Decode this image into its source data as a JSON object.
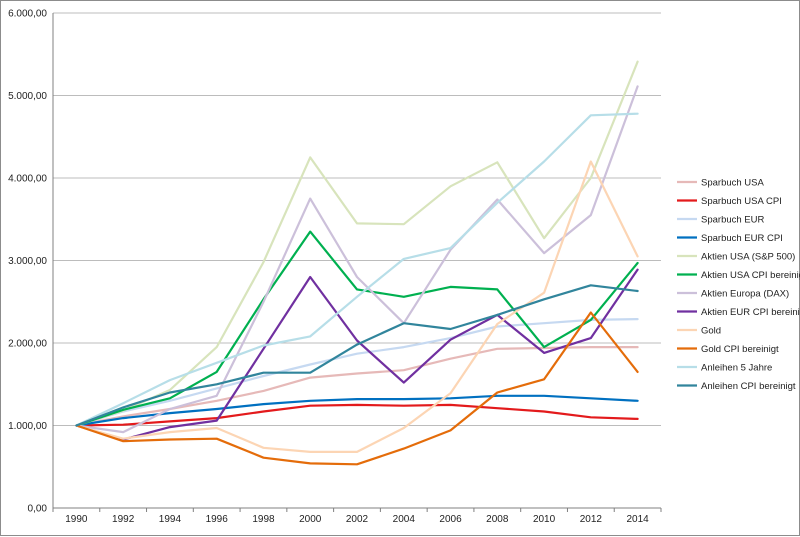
{
  "chart_data": {
    "type": "line",
    "title": "",
    "xlabel": "",
    "ylabel": "",
    "ylim": [
      0,
      6000
    ],
    "y_ticks": [
      0,
      1000,
      2000,
      3000,
      4000,
      5000,
      6000
    ],
    "y_tick_labels": [
      "0,00",
      "1.000,00",
      "2.000,00",
      "3.000,00",
      "4.000,00",
      "5.000,00",
      "6.000,00"
    ],
    "x": [
      "1990",
      "1992",
      "1994",
      "1996",
      "1998",
      "2000",
      "2002",
      "2004",
      "2006",
      "2008",
      "2010",
      "2012",
      "2014"
    ],
    "grid": "horizontal",
    "legend_position": "right",
    "series": [
      {
        "name": "Sparbuch USA",
        "color": "#e6b9b8",
        "values": [
          1000,
          1110,
          1200,
          1300,
          1420,
          1580,
          1630,
          1670,
          1810,
          1930,
          1940,
          1950,
          1950
        ]
      },
      {
        "name": "Sparbuch USA CPI",
        "color": "#e31a1c",
        "values": [
          1000,
          1010,
          1050,
          1090,
          1170,
          1240,
          1250,
          1240,
          1250,
          1210,
          1170,
          1100,
          1080
        ]
      },
      {
        "name": "Sparbuch EUR",
        "color": "#c6d9f1",
        "values": [
          1000,
          1170,
          1300,
          1450,
          1600,
          1740,
          1870,
          1950,
          2060,
          2200,
          2240,
          2280,
          2290
        ]
      },
      {
        "name": "Sparbuch EUR CPI",
        "color": "#0070c0",
        "values": [
          1000,
          1090,
          1150,
          1200,
          1260,
          1300,
          1320,
          1320,
          1330,
          1360,
          1360,
          1330,
          1300
        ]
      },
      {
        "name": "Aktien USA (S&P 500)",
        "color": "#d8e4bc",
        "values": [
          1000,
          1180,
          1430,
          1950,
          2980,
          4250,
          3450,
          3440,
          3900,
          4190,
          3270,
          4000,
          5410
        ]
      },
      {
        "name": "Aktien USA CPI bereinigt",
        "color": "#00b050",
        "values": [
          1000,
          1190,
          1330,
          1650,
          2530,
          3350,
          2650,
          2560,
          2680,
          2650,
          1950,
          2280,
          2970
        ]
      },
      {
        "name": "Aktien Europa (DAX)",
        "color": "#ccc0da",
        "values": [
          1000,
          920,
          1200,
          1360,
          2500,
          3750,
          2800,
          2240,
          3130,
          3740,
          3090,
          3550,
          5110
        ]
      },
      {
        "name": "Aktien EUR CPI bereinigt",
        "color": "#7030a0",
        "values": [
          1000,
          830,
          980,
          1060,
          1930,
          2800,
          2030,
          1520,
          2040,
          2340,
          1880,
          2060,
          2890
        ]
      },
      {
        "name": "Gold",
        "color": "#fcd5b4",
        "values": [
          1000,
          840,
          920,
          970,
          730,
          680,
          680,
          970,
          1390,
          2230,
          2610,
          4200,
          3050
        ]
      },
      {
        "name": "Gold CPI bereinigt",
        "color": "#e46c0a",
        "values": [
          1000,
          810,
          830,
          840,
          610,
          540,
          530,
          720,
          940,
          1400,
          1560,
          2370,
          1650
        ]
      },
      {
        "name": "Anleihen 5 Jahre",
        "color": "#b7dee8",
        "values": [
          1000,
          1270,
          1550,
          1760,
          1970,
          2080,
          2560,
          3020,
          3150,
          3700,
          4200,
          4760,
          4780
        ]
      },
      {
        "name": "Anleihen CPI bereinigt",
        "color": "#31859c",
        "values": [
          1000,
          1220,
          1400,
          1500,
          1640,
          1640,
          1980,
          2240,
          2170,
          2340,
          2530,
          2700,
          2630
        ]
      }
    ]
  }
}
